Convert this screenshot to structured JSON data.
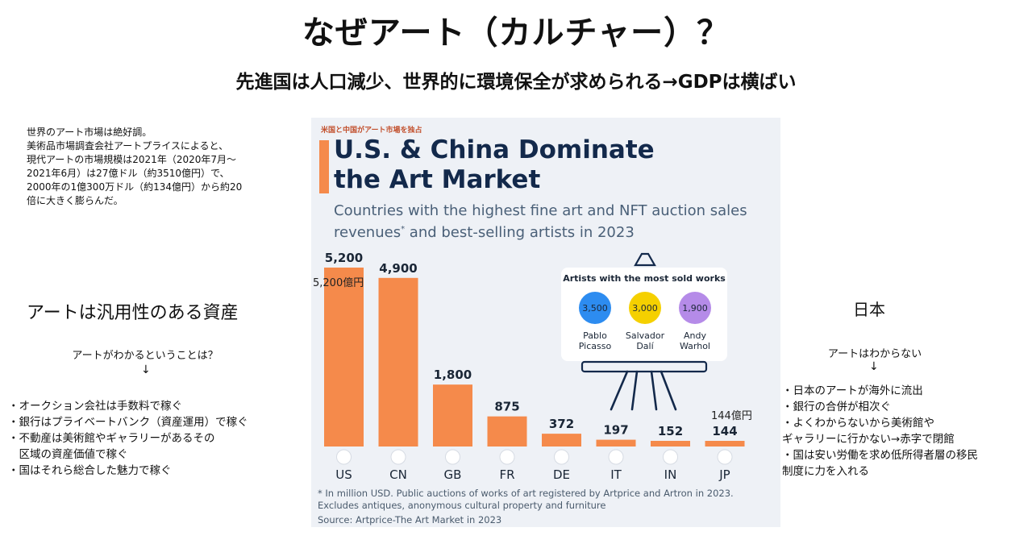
{
  "page": {
    "title": "なぜアート（カルチャー）？",
    "subtitle": "先進国は人口減少、世界的に環境保全が求められる→GDPは横ばい"
  },
  "left": {
    "note": [
      "世界のアート市場は絶好調。",
      "美術品市場調査会社アートプライスによると、",
      "現代アートの市場規模は2021年（2020年7月〜",
      "2021年6月）は27億ドル（約3510億円）で、",
      "2000年の1億300万ドル（約134億円）から約20",
      "倍に大きく膨らんだ。"
    ],
    "heading": "アートは汎用性のある資産",
    "question": "アートがわかるということは？",
    "arrow": "↓",
    "list": [
      "・オークション会社は手数料で稼ぐ",
      "・銀行はプライベートバンク（資産運用）で稼ぐ",
      "・不動産は美術館やギャラリーがあるその",
      "　区域の資産価値で稼ぐ",
      "・国はそれら総合した魅力で稼ぐ"
    ]
  },
  "right": {
    "heading": "日本",
    "question": "アートはわからない",
    "arrow": "↓",
    "list": [
      "・日本のアートが海外に流出",
      "・銀行の合併が相次ぐ",
      "・よくわからないから美術館や",
      "ギャラリーに行かない→赤字で閉館",
      "・国は安い労働を求め低所得者層の移民",
      "制度に力を入れる"
    ]
  },
  "infographic": {
    "note": "米国と中国がアート市場を独占",
    "footnote_lines": [
      "* In million USD. Public auctions of works of art registered by Artprice and Artron in 2023.",
      "  Excludes antiques, anonymous cultural property and furniture"
    ],
    "source": "Source: Artprice-The Art Market in 2023",
    "annotation_us": "5,200億円",
    "annotation_jp": "144億円",
    "colors": {
      "bar": "#f58a4b",
      "title": "#13294b",
      "bg": "#eef1f6"
    }
  },
  "chart_data": {
    "type": "bar",
    "title": "U.S. & China Dominate the Art Market",
    "title_lines": [
      "U.S. & China Dominate",
      "the Art Market"
    ],
    "subtitle_line1": "Countries with the highest fine art and NFT auction sales",
    "subtitle_line2_pre": "revenues",
    "subtitle_line2_sup": "*",
    "subtitle_line2_post": " and best-selling artists in 2023",
    "categories": [
      "US",
      "CN",
      "GB",
      "FR",
      "DE",
      "IT",
      "IN",
      "JP"
    ],
    "values": [
      5200,
      4900,
      1800,
      875,
      372,
      197,
      152,
      144
    ],
    "value_labels": [
      "5,200",
      "4,900",
      "1,800",
      "875",
      "372",
      "197",
      "152",
      "144"
    ],
    "ylim": [
      0,
      5200
    ],
    "grid": false,
    "legend": "none",
    "artists_panel": {
      "title": "Artists with the most sold works",
      "artists": [
        {
          "first": "Pablo",
          "last": "Picasso",
          "value": "3,500",
          "color": "#2d8cf0"
        },
        {
          "first": "Salvador",
          "last": "Dalí",
          "value": "3,000",
          "color": "#f5d000"
        },
        {
          "first": "Andy",
          "last": "Warhol",
          "value": "1,900",
          "color": "#b58be8"
        }
      ]
    }
  }
}
